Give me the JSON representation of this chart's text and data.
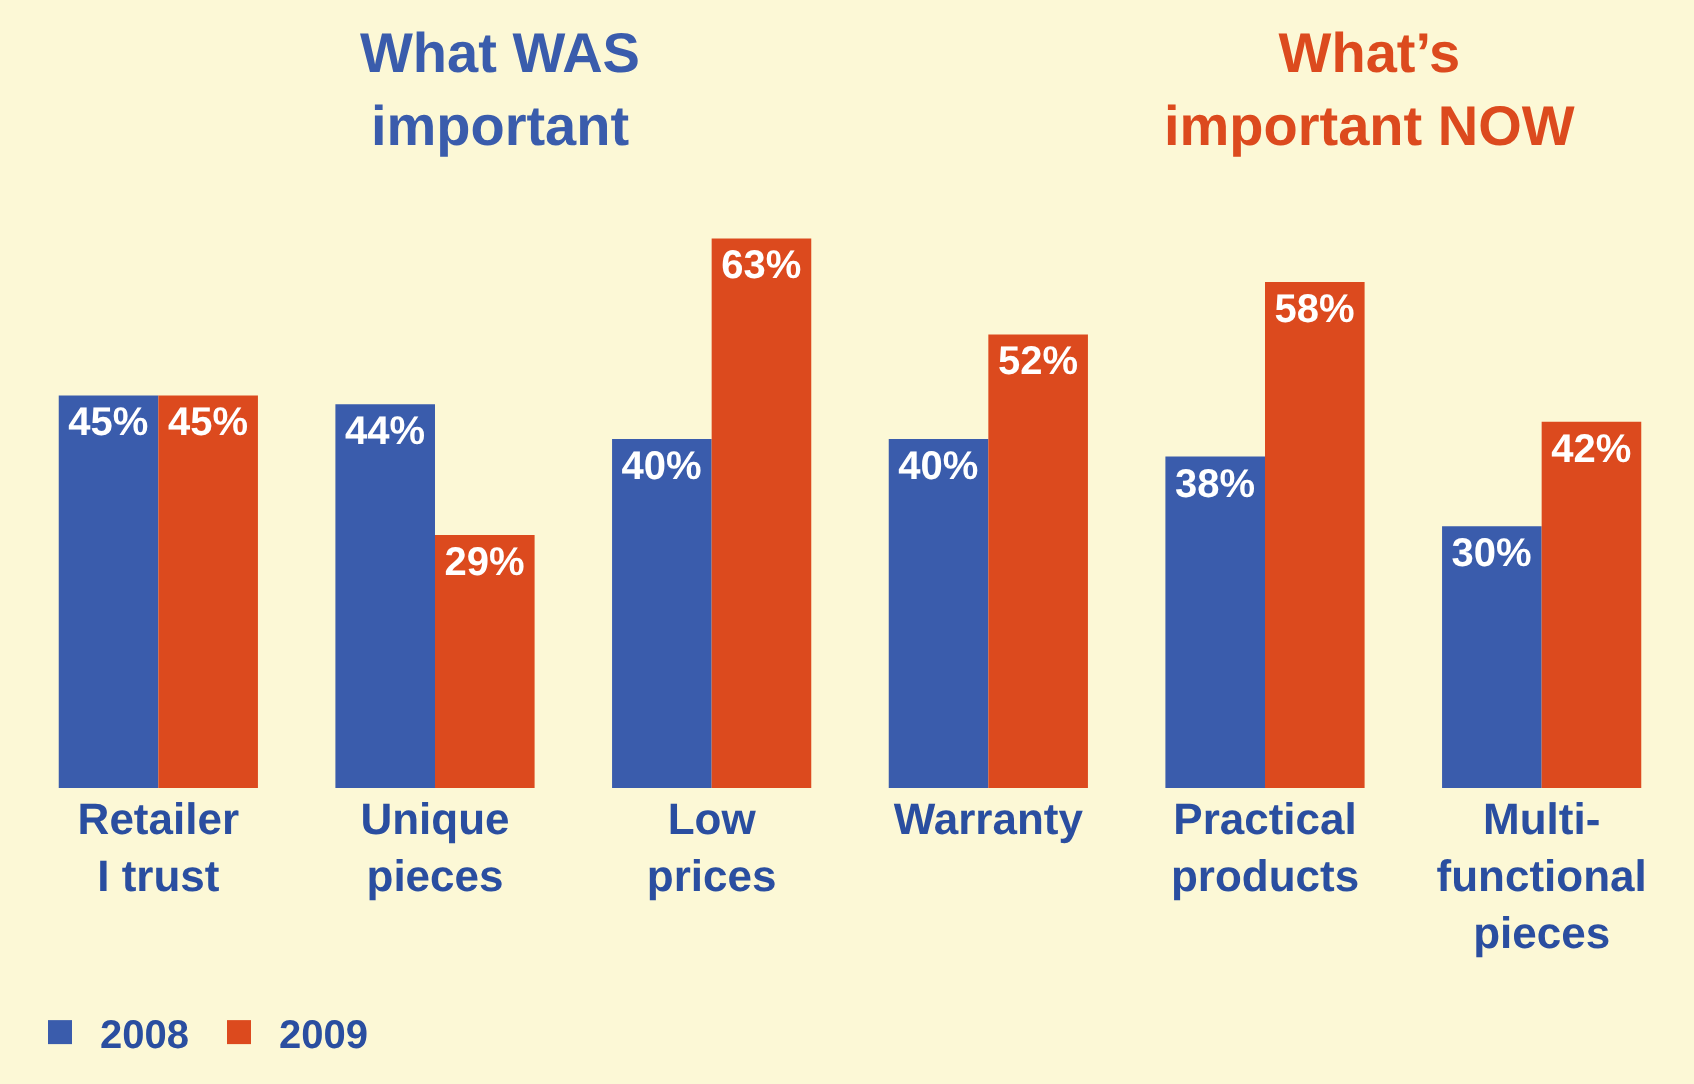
{
  "chart_data": {
    "type": "bar",
    "categories": [
      "Retailer\nI trust",
      "Unique\npieces",
      "Low\nprices",
      "Warranty",
      "Practical\nproducts",
      "Multi-\nfunctional\npieces"
    ],
    "series": [
      {
        "name": "2008",
        "color": "#3a5cac",
        "values": [
          45,
          44,
          40,
          40,
          38,
          30
        ],
        "value_labels": [
          "45%",
          "44%",
          "40%",
          "40%",
          "38%",
          "30%"
        ]
      },
      {
        "name": "2009",
        "color": "#dc4a1e",
        "values": [
          45,
          29,
          63,
          52,
          58,
          42
        ],
        "value_labels": [
          "45%",
          "29%",
          "63%",
          "52%",
          "58%",
          "42%"
        ]
      }
    ],
    "annotations": [
      "What WAS\nimportant",
      "What’s\nimportant NOW"
    ],
    "legend": "bottom left"
  }
}
